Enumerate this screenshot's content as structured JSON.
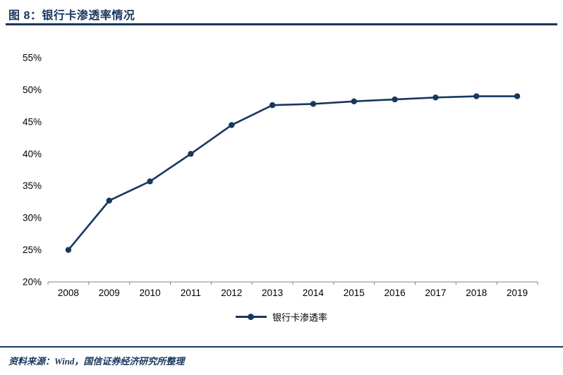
{
  "title": {
    "label": "图 8：银行卡渗透率情况"
  },
  "footer": {
    "source_note": "资料来源：Wind，国信证券经济研究所整理"
  },
  "legend": {
    "label": "银行卡渗透率"
  },
  "colors": {
    "accent": "#17375E",
    "axis_line": "#808080",
    "tick_text": "#000000"
  },
  "chart_data": {
    "type": "line",
    "title": "银行卡渗透率情况",
    "categories": [
      "2008",
      "2009",
      "2010",
      "2011",
      "2012",
      "2013",
      "2014",
      "2015",
      "2016",
      "2017",
      "2018",
      "2019"
    ],
    "series": [
      {
        "name": "银行卡渗透率",
        "values": [
          25.0,
          32.7,
          35.7,
          40.0,
          44.5,
          47.6,
          47.8,
          48.2,
          48.5,
          48.8,
          49.0,
          49.0
        ]
      }
    ],
    "xlabel": "",
    "ylabel": "",
    "ylim": [
      20,
      55
    ],
    "ytick_step": 5,
    "ytick_format": "percent",
    "grid": false,
    "legend_position": "bottom",
    "marker": "circle"
  }
}
